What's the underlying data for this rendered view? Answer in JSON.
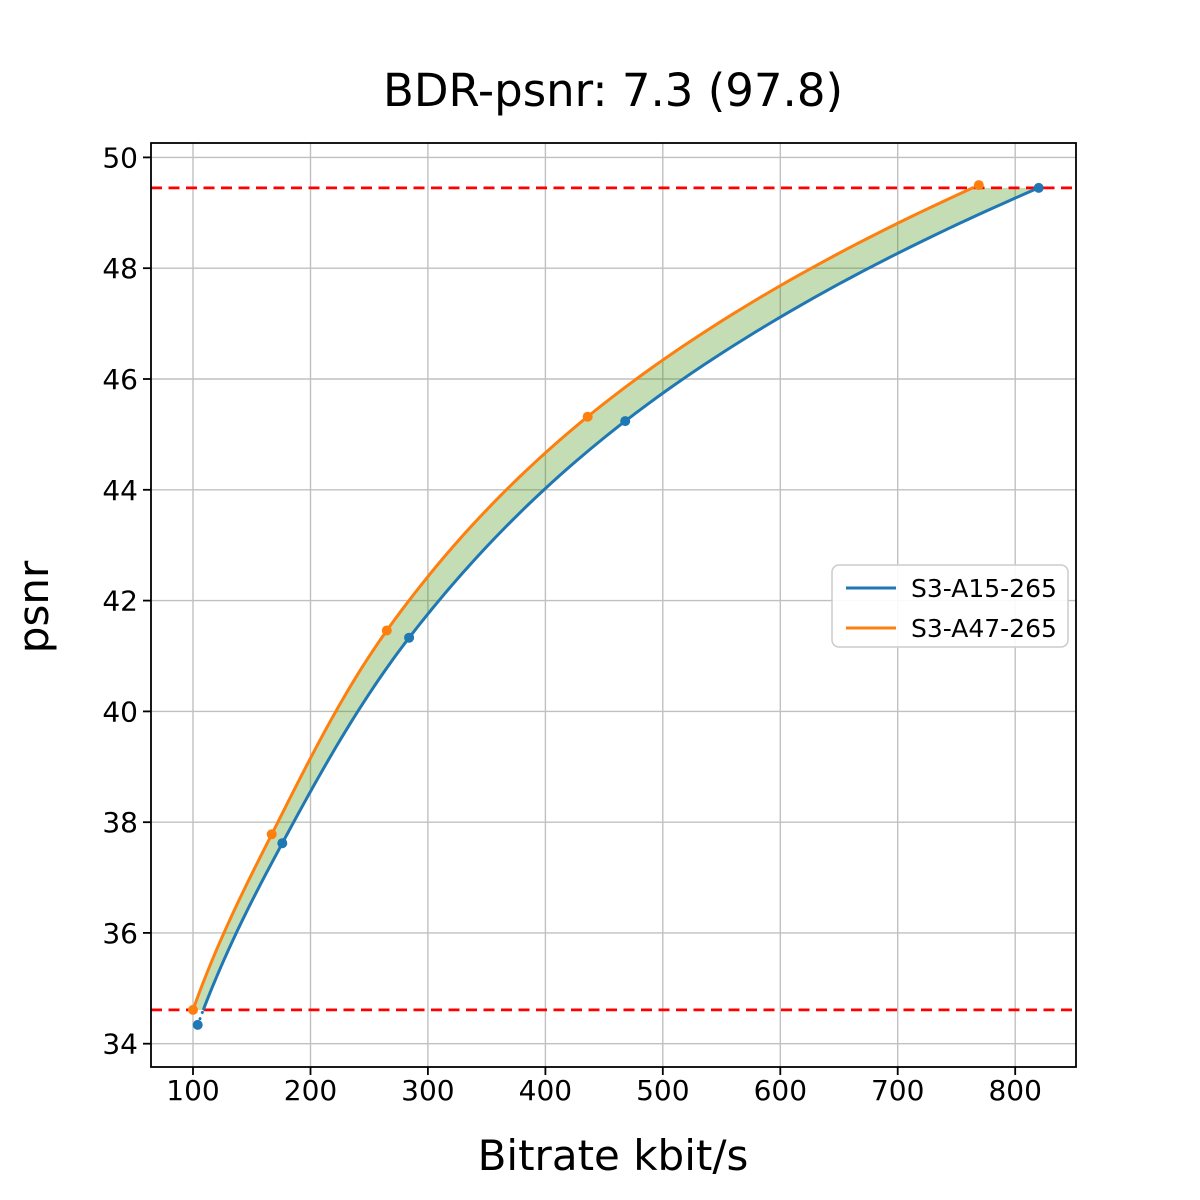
{
  "chart_data": {
    "type": "line",
    "title": "BDR-psnr: 7.3 (97.8)",
    "xlabel": "Bitrate kbit/s",
    "ylabel": "psnr",
    "xlim": [
      64.2,
      851.8
    ],
    "ylim": [
      33.58,
      50.26
    ],
    "xticks": [
      100,
      200,
      300,
      400,
      500,
      600,
      700,
      800
    ],
    "yticks": [
      34,
      36,
      38,
      40,
      42,
      44,
      46,
      48,
      50
    ],
    "grid": true,
    "legend": {
      "position": "center right"
    },
    "colors": {
      "grid": "#c0c0c0",
      "spine": "#000000",
      "bound_line": "#ff0000",
      "gap_fill": "rgba(62,142,8,0.30)",
      "background": "#ffffff"
    },
    "series": [
      {
        "name": "S3-A15-265",
        "color": "#1f77b4",
        "points": [
          [
            104,
            34.34
          ],
          [
            176,
            37.62
          ],
          [
            284,
            41.33
          ],
          [
            468,
            45.24
          ],
          [
            820,
            49.45
          ]
        ]
      },
      {
        "name": "S3-A47-265",
        "color": "#ff7f0e",
        "points": [
          [
            100,
            34.61
          ],
          [
            167,
            37.78
          ],
          [
            265,
            41.46
          ],
          [
            436,
            45.32
          ],
          [
            769,
            49.5
          ]
        ]
      }
    ],
    "bounds": {
      "lower_psnr": 34.61,
      "upper_psnr": 49.45
    }
  }
}
